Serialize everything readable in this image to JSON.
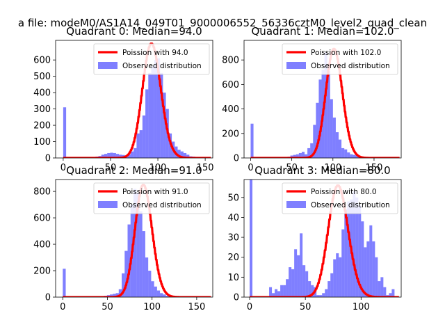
{
  "figure": {
    "suptitle": "a file: modeM0/AS1A14_049T01_9000006552_56336cztM0_level2_quad_clean"
  },
  "colors": {
    "bars": "#0000ff",
    "bar_alpha": 0.5,
    "poisson": "#ff0000",
    "axis": "#000000"
  },
  "chart_data": [
    {
      "type": "bar",
      "title": "Quadrant 0: Median=94.0",
      "median": 94.0,
      "peak": 700,
      "xlim": [
        -8,
        158
      ],
      "ylim": [
        0,
        720
      ],
      "xticks": [
        0,
        50,
        100,
        150
      ],
      "yticks": [
        0,
        100,
        200,
        300,
        400,
        500,
        600
      ],
      "legend": [
        "Poission with 94.0",
        "Observed distribution"
      ],
      "bins": {
        "start": 0,
        "width": 3.1,
        "counts": [
          310,
          0,
          0,
          0,
          0,
          0,
          0,
          0,
          0,
          0,
          5,
          8,
          12,
          20,
          25,
          30,
          32,
          30,
          25,
          20,
          18,
          15,
          22,
          40,
          60,
          150,
          170,
          260,
          420,
          520,
          560,
          600,
          610,
          520,
          400,
          300,
          150,
          100,
          70,
          50,
          40,
          30,
          20,
          10,
          8,
          5,
          3,
          2
        ]
      }
    },
    {
      "type": "bar",
      "title": "Quadrant 1: Median=102.0",
      "median": 102.0,
      "peak": 890,
      "xlim": [
        -8,
        183
      ],
      "ylim": [
        0,
        960
      ],
      "xticks": [
        0,
        50,
        100,
        150
      ],
      "yticks": [
        0,
        200,
        400,
        600,
        800
      ],
      "legend": [
        "Poission with 102.0",
        "Observed distribution"
      ],
      "bins": {
        "start": 0,
        "width": 3.45,
        "counts": [
          280,
          0,
          0,
          0,
          0,
          0,
          0,
          0,
          0,
          0,
          0,
          0,
          5,
          10,
          20,
          25,
          30,
          40,
          50,
          30,
          80,
          120,
          270,
          450,
          640,
          720,
          860,
          710,
          480,
          330,
          210,
          150,
          80,
          70,
          45,
          30,
          25,
          20,
          15,
          10,
          8,
          5,
          3,
          2,
          2,
          1,
          1,
          0,
          0,
          0,
          0,
          0,
          0
        ]
      }
    },
    {
      "type": "bar",
      "title": "Quadrant 2: Median=91.0",
      "median": 91.0,
      "peak": 850,
      "xlim": [
        -8,
        168
      ],
      "ylim": [
        0,
        890
      ],
      "xticks": [
        0,
        50,
        100,
        150
      ],
      "yticks": [
        0,
        200,
        400,
        600,
        800
      ],
      "legend": [
        "Poission with 91.0",
        "Observed distribution"
      ],
      "bins": {
        "start": 0,
        "width": 3.3,
        "counts": [
          215,
          0,
          0,
          0,
          0,
          0,
          0,
          0,
          0,
          0,
          0,
          0,
          5,
          8,
          10,
          15,
          20,
          25,
          30,
          60,
          180,
          350,
          550,
          700,
          820,
          790,
          650,
          500,
          300,
          200,
          120,
          80,
          50,
          30,
          20,
          10,
          8,
          5,
          3,
          2,
          1,
          1,
          0,
          0,
          0,
          0,
          0,
          0
        ]
      }
    },
    {
      "type": "bar",
      "title": "Quadrant 3: Median=80.0",
      "median": 80.0,
      "peak": 56,
      "xlim": [
        -5,
        136
      ],
      "ylim": [
        0,
        59
      ],
      "xticks": [
        0,
        50,
        100
      ],
      "yticks": [
        0,
        10,
        20,
        30,
        40,
        50
      ],
      "legend": [
        "Poission with 80.0",
        "Observed distribution"
      ],
      "bins": {
        "start": 0,
        "width": 2.5,
        "counts": [
          59,
          0,
          0,
          0,
          0,
          0,
          0,
          5,
          2,
          4,
          3,
          6,
          6,
          9,
          15,
          14,
          24,
          21,
          32,
          16,
          13,
          8,
          6,
          5,
          1,
          1,
          2,
          4,
          8,
          12,
          19,
          22,
          20,
          34,
          44,
          48,
          49,
          53,
          50,
          46,
          38,
          25,
          28,
          36,
          28,
          20,
          8,
          10,
          5,
          1,
          2,
          4
        ]
      }
    }
  ]
}
